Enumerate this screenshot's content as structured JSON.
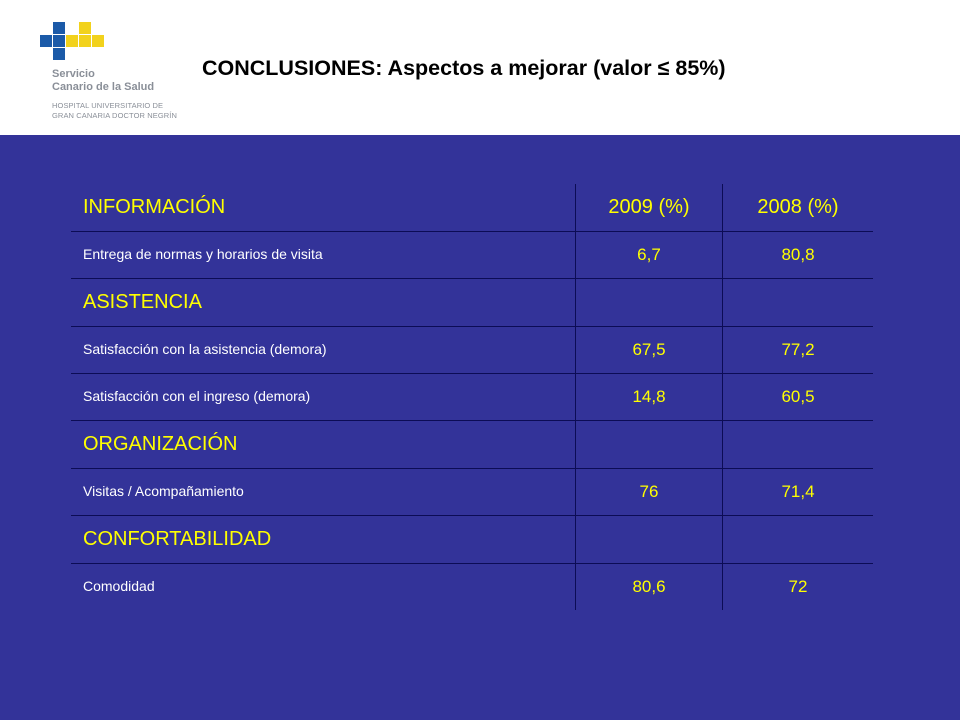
{
  "logo": {
    "line1": "Servicio",
    "line2": "Canario de la Salud",
    "line3": "HOSPITAL UNIVERSITARIO DE",
    "line4": "GRAN CANARIA DOCTOR NEGRÍN",
    "colors": {
      "blue": "#1b5aa8",
      "yellow": "#f2d21c"
    }
  },
  "title": "CONCLUSIONES: Aspectos a mejorar (valor ≤ 85%)",
  "table": {
    "headers": {
      "col1": "INFORMACIÓN",
      "col2": "2009 (%)",
      "col3": "2008 (%)"
    },
    "rows": [
      {
        "label": "Entrega de normas y horarios de visita",
        "v2009": "6,7",
        "v2008": "80,8"
      },
      {
        "section": "ASISTENCIA"
      },
      {
        "label": "Satisfacción con la asistencia  (demora)",
        "v2009": "67,5",
        "v2008": "77,2"
      },
      {
        "label": "Satisfacción con el ingreso (demora)",
        "v2009": "14,8",
        "v2008": "60,5"
      },
      {
        "section": "ORGANIZACIÓN"
      },
      {
        "label": "Visitas / Acompañamiento",
        "v2009": "76",
        "v2008": "71,4"
      },
      {
        "section": "CONFORTABILIDAD"
      },
      {
        "label": "Comodidad",
        "v2009": "80,6",
        "v2008": "72"
      }
    ]
  },
  "colors": {
    "background": "#333399",
    "accent": "#ffff00",
    "text": "#ffffff"
  }
}
